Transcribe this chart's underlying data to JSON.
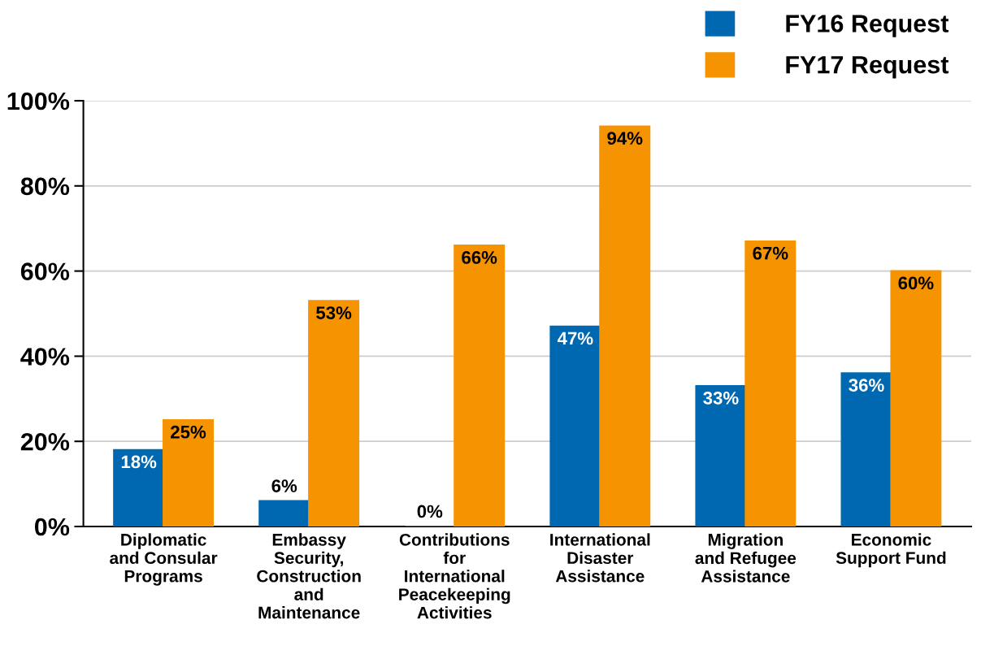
{
  "chart_data": {
    "type": "bar",
    "categories": [
      "Diplomatic\nand Consular\nPrograms",
      "Embassy\nSecurity,\nConstruction\nand\nMaintenance",
      "Contributions\nfor\nInternational\nPeacekeeping\nActivities",
      "International\nDisaster\nAssistance",
      "Migration\nand Refugee\nAssistance",
      "Economic\nSupport Fund"
    ],
    "series": [
      {
        "name": "FY16 Request",
        "color": "#0068b0",
        "values": [
          18,
          6,
          0,
          47,
          33,
          36
        ],
        "value_labels": [
          "18%",
          "6%",
          "0%",
          "47%",
          "33%",
          "36%"
        ]
      },
      {
        "name": "FY17 Request",
        "color": "#f59300",
        "values": [
          25,
          53,
          66,
          94,
          67,
          60
        ],
        "value_labels": [
          "25%",
          "53%",
          "66%",
          "94%",
          "67%",
          "60%"
        ]
      }
    ],
    "ylim": [
      0,
      100
    ],
    "yticks": [
      {
        "value": 0,
        "label": "0%"
      },
      {
        "value": 20,
        "label": "20%"
      },
      {
        "value": 40,
        "label": "40%"
      },
      {
        "value": 60,
        "label": "60%"
      },
      {
        "value": 80,
        "label": "80%"
      },
      {
        "value": 100,
        "label": "100%"
      }
    ],
    "grid": "y",
    "legend": "top right"
  }
}
